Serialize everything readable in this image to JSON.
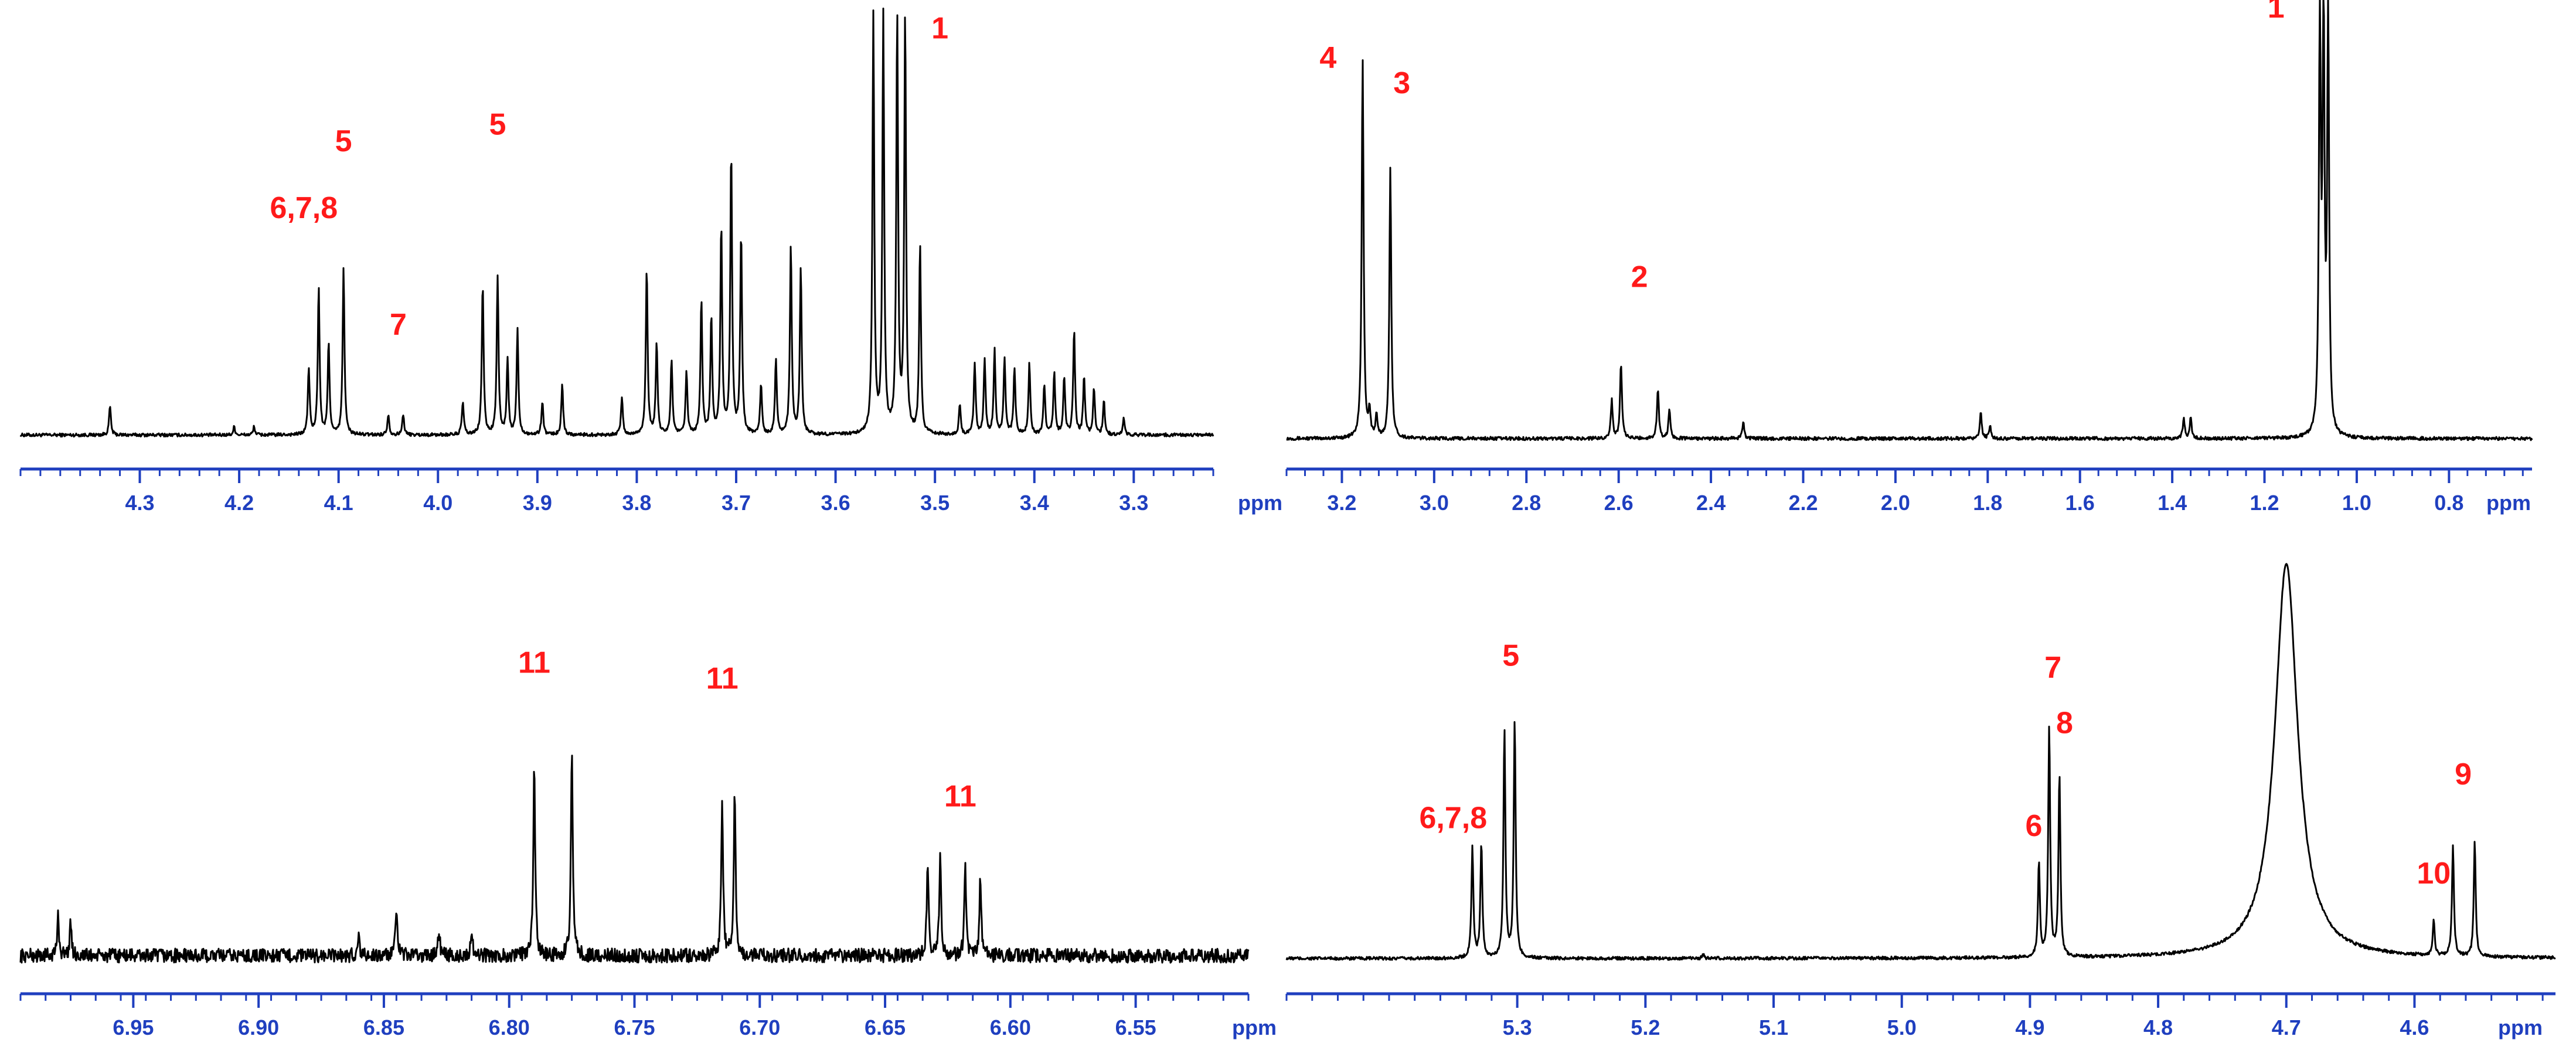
{
  "chart_data": [
    {
      "type": "line",
      "panel": "top-left",
      "xlabel": "ppm",
      "x_reversed": true,
      "xlim": [
        4.42,
        3.22
      ],
      "ticks": [
        "4.3",
        "4.2",
        "4.1",
        "4.0",
        "3.9",
        "3.8",
        "3.7",
        "3.6",
        "3.5",
        "3.4",
        "3.3"
      ],
      "tick_values": [
        4.3,
        4.2,
        4.1,
        4.0,
        3.9,
        3.8,
        3.7,
        3.6,
        3.5,
        3.4,
        3.3
      ],
      "series": [
        {
          "peaks": [
            {
              "x": 4.33,
              "h": 0.07
            },
            {
              "x": 4.205,
              "h": 0.02
            },
            {
              "x": 4.185,
              "h": 0.02
            },
            {
              "x": 4.13,
              "h": 0.16
            },
            {
              "x": 4.12,
              "h": 0.35
            },
            {
              "x": 4.11,
              "h": 0.22
            },
            {
              "x": 4.095,
              "h": 0.4
            },
            {
              "x": 4.05,
              "h": 0.05
            },
            {
              "x": 4.035,
              "h": 0.05
            },
            {
              "x": 3.975,
              "h": 0.08
            },
            {
              "x": 3.955,
              "h": 0.36
            },
            {
              "x": 3.94,
              "h": 0.38
            },
            {
              "x": 3.93,
              "h": 0.18
            },
            {
              "x": 3.92,
              "h": 0.25
            },
            {
              "x": 3.895,
              "h": 0.08
            },
            {
              "x": 3.875,
              "h": 0.12
            },
            {
              "x": 3.815,
              "h": 0.09
            },
            {
              "x": 3.79,
              "h": 0.4
            },
            {
              "x": 3.78,
              "h": 0.22
            },
            {
              "x": 3.765,
              "h": 0.18
            },
            {
              "x": 3.75,
              "h": 0.15
            },
            {
              "x": 3.735,
              "h": 0.32
            },
            {
              "x": 3.725,
              "h": 0.28
            },
            {
              "x": 3.715,
              "h": 0.5
            },
            {
              "x": 3.705,
              "h": 0.68
            },
            {
              "x": 3.695,
              "h": 0.48
            },
            {
              "x": 3.675,
              "h": 0.12
            },
            {
              "x": 3.66,
              "h": 0.18
            },
            {
              "x": 3.645,
              "h": 0.45
            },
            {
              "x": 3.635,
              "h": 0.4
            },
            {
              "x": 3.562,
              "h": 1.0
            },
            {
              "x": 3.552,
              "h": 1.0
            },
            {
              "x": 3.538,
              "h": 1.0
            },
            {
              "x": 3.53,
              "h": 1.0
            },
            {
              "x": 3.515,
              "h": 0.45
            },
            {
              "x": 3.475,
              "h": 0.07
            },
            {
              "x": 3.46,
              "h": 0.17
            },
            {
              "x": 3.45,
              "h": 0.18
            },
            {
              "x": 3.44,
              "h": 0.2
            },
            {
              "x": 3.43,
              "h": 0.18
            },
            {
              "x": 3.42,
              "h": 0.16
            },
            {
              "x": 3.405,
              "h": 0.17
            },
            {
              "x": 3.39,
              "h": 0.12
            },
            {
              "x": 3.38,
              "h": 0.15
            },
            {
              "x": 3.37,
              "h": 0.14
            },
            {
              "x": 3.36,
              "h": 0.25
            },
            {
              "x": 3.35,
              "h": 0.14
            },
            {
              "x": 3.34,
              "h": 0.11
            },
            {
              "x": 3.33,
              "h": 0.08
            },
            {
              "x": 3.31,
              "h": 0.04
            }
          ]
        }
      ],
      "annotations": [
        {
          "text": "6,7,8",
          "x": 4.135,
          "h": 0.52
        },
        {
          "text": "5",
          "x": 4.095,
          "h": 0.68
        },
        {
          "text": "7",
          "x": 4.04,
          "h": 0.24
        },
        {
          "text": "5",
          "x": 3.94,
          "h": 0.72
        },
        {
          "text": "1",
          "x": 3.495,
          "h": 0.95
        }
      ]
    },
    {
      "type": "line",
      "panel": "top-right",
      "xlabel": "ppm",
      "x_reversed": true,
      "xlim": [
        3.32,
        0.62
      ],
      "ticks": [
        "3.2",
        "3.0",
        "2.8",
        "2.6",
        "2.4",
        "2.2",
        "2.0",
        "1.8",
        "1.6",
        "1.4",
        "1.2",
        "1.0",
        "0.8"
      ],
      "tick_values": [
        3.2,
        3.0,
        2.8,
        2.6,
        2.4,
        2.2,
        2.0,
        1.8,
        1.6,
        1.4,
        1.2,
        1.0,
        0.8
      ],
      "series": [
        {
          "peaks": [
            {
              "x": 3.155,
              "h": 0.9
            },
            {
              "x": 3.14,
              "h": 0.06
            },
            {
              "x": 3.125,
              "h": 0.05
            },
            {
              "x": 3.095,
              "h": 0.64
            },
            {
              "x": 2.615,
              "h": 0.09
            },
            {
              "x": 2.595,
              "h": 0.18
            },
            {
              "x": 2.515,
              "h": 0.12
            },
            {
              "x": 2.49,
              "h": 0.07
            },
            {
              "x": 2.33,
              "h": 0.04
            },
            {
              "x": 1.815,
              "h": 0.06
            },
            {
              "x": 1.795,
              "h": 0.03
            },
            {
              "x": 1.375,
              "h": 0.05
            },
            {
              "x": 1.36,
              "h": 0.05
            },
            {
              "x": 1.08,
              "h": 1.0
            },
            {
              "x": 1.072,
              "h": 1.0
            },
            {
              "x": 1.062,
              "h": 1.0
            }
          ]
        }
      ],
      "annotations": [
        {
          "text": "4",
          "x": 3.23,
          "h": 0.88
        },
        {
          "text": "3",
          "x": 3.07,
          "h": 0.82
        },
        {
          "text": "2",
          "x": 2.555,
          "h": 0.36
        },
        {
          "text": "1",
          "x": 1.175,
          "h": 1.0
        }
      ]
    },
    {
      "type": "line",
      "panel": "bottom-left",
      "xlabel": "ppm",
      "x_reversed": true,
      "xlim": [
        6.995,
        6.505
      ],
      "ticks": [
        "6.95",
        "6.90",
        "6.85",
        "6.80",
        "6.75",
        "6.70",
        "6.65",
        "6.60",
        "6.55"
      ],
      "tick_values": [
        6.95,
        6.9,
        6.85,
        6.8,
        6.75,
        6.7,
        6.65,
        6.6,
        6.55
      ],
      "series": [
        {
          "peaks": [
            {
              "x": 6.98,
              "h": 0.1
            },
            {
              "x": 6.975,
              "h": 0.08
            },
            {
              "x": 6.86,
              "h": 0.05
            },
            {
              "x": 6.845,
              "h": 0.12
            },
            {
              "x": 6.828,
              "h": 0.07
            },
            {
              "x": 6.815,
              "h": 0.06
            },
            {
              "x": 6.79,
              "h": 0.49
            },
            {
              "x": 6.775,
              "h": 0.53
            },
            {
              "x": 6.715,
              "h": 0.4
            },
            {
              "x": 6.71,
              "h": 0.42
            },
            {
              "x": 6.633,
              "h": 0.24
            },
            {
              "x": 6.628,
              "h": 0.25
            },
            {
              "x": 6.618,
              "h": 0.22
            },
            {
              "x": 6.612,
              "h": 0.2
            }
          ]
        }
      ],
      "annotations": [
        {
          "text": "11",
          "x": 6.79,
          "h": 0.72
        },
        {
          "text": "11",
          "x": 6.715,
          "h": 0.68
        },
        {
          "text": "11",
          "x": 6.62,
          "h": 0.38
        }
      ]
    },
    {
      "type": "line",
      "panel": "bottom-right",
      "xlabel": "ppm",
      "x_reversed": true,
      "xlim": [
        5.48,
        4.49
      ],
      "ticks": [
        "5.3",
        "5.2",
        "5.1",
        "5.0",
        "4.9",
        "4.8",
        "4.7",
        "4.6"
      ],
      "tick_values": [
        5.3,
        5.2,
        5.1,
        5.0,
        4.9,
        4.8,
        4.7,
        4.6
      ],
      "series": [
        {
          "peaks": [
            {
              "x": 5.335,
              "h": 0.28
            },
            {
              "x": 5.328,
              "h": 0.29
            },
            {
              "x": 5.31,
              "h": 0.58
            },
            {
              "x": 5.302,
              "h": 0.6
            },
            {
              "x": 5.155,
              "h": 0.01
            },
            {
              "x": 4.893,
              "h": 0.24
            },
            {
              "x": 4.885,
              "h": 0.58
            },
            {
              "x": 4.877,
              "h": 0.46
            },
            {
              "x": 4.7,
              "h": 1.0
            },
            {
              "x": 4.585,
              "h": 0.09
            },
            {
              "x": 4.57,
              "h": 0.28
            },
            {
              "x": 4.553,
              "h": 0.29
            }
          ]
        }
      ],
      "annotations": [
        {
          "text": "6,7,8",
          "x": 5.35,
          "h": 0.33
        },
        {
          "text": "5",
          "x": 5.305,
          "h": 0.74
        },
        {
          "text": "7",
          "x": 4.882,
          "h": 0.71
        },
        {
          "text": "8",
          "x": 4.873,
          "h": 0.57
        },
        {
          "text": "6",
          "x": 4.897,
          "h": 0.31
        },
        {
          "text": "10",
          "x": 4.585,
          "h": 0.19
        },
        {
          "text": "9",
          "x": 4.562,
          "h": 0.44
        }
      ]
    }
  ]
}
